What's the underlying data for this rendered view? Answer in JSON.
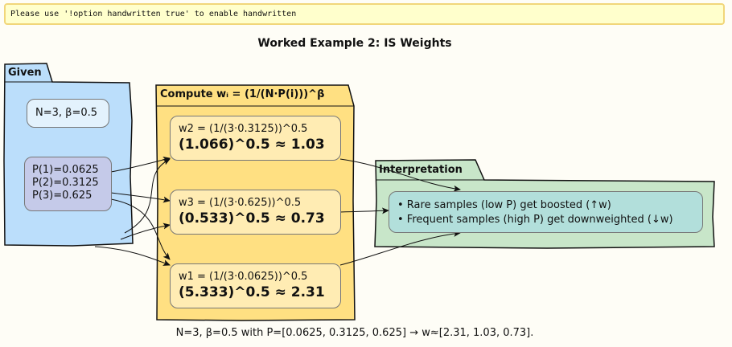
{
  "banner": {
    "text": "Please use '!option handwritten true' to enable handwritten"
  },
  "title": "Worked Example 2: IS Weights",
  "packages": {
    "given": {
      "label": "Given",
      "params": "N=3, β=0.5",
      "probs": [
        "P(1)=0.0625",
        "P(2)=0.3125",
        "P(3)=0.625"
      ]
    },
    "compute": {
      "label": "Compute wᵢ = (1/(N·P(i)))^β",
      "w2": {
        "formula": "w2 = (1/(3·0.3125))^0.5",
        "result": "(1.066)^0.5 ≈ 1.03"
      },
      "w3": {
        "formula": "w3 = (1/(3·0.625))^0.5",
        "result": "(0.533)^0.5 ≈ 0.73"
      },
      "w1": {
        "formula": "w1 = (1/(3·0.0625))^0.5",
        "result": "(5.333)^0.5 ≈ 2.31"
      }
    },
    "interpretation": {
      "label": "Interpretation",
      "bullets": [
        "• Rare samples (low P) get boosted (↑w)",
        "• Frequent samples (high P) get downweighted (↓w)"
      ]
    }
  },
  "caption": "N=3, β=0.5 with P=[0.0625, 0.3125, 0.625] → w≈[2.31, 1.03, 0.73].",
  "colors": {
    "given_fill": "#bbdefb",
    "params_fill": "#e3f2fd",
    "probs_fill": "#c5cae9",
    "compute_fill": "#ffe082",
    "weight_fill": "#ffecb3",
    "interp_fill": "#c8e6c9",
    "bullets_fill": "#b2dfdb",
    "banner_fill": "#ffffcc"
  }
}
